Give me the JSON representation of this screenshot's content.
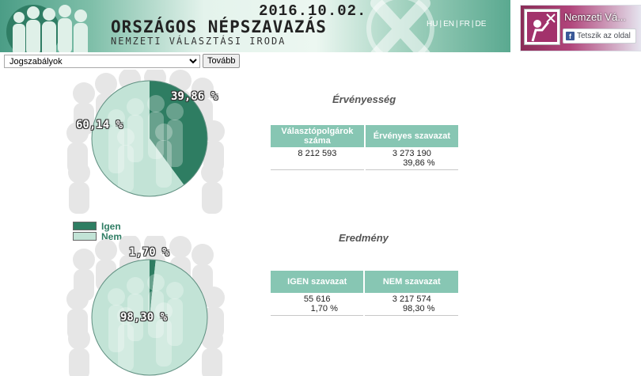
{
  "header": {
    "date": "2016.10.02.",
    "title": "ORSZÁGOS NÉPSZAVAZÁS",
    "subtitle": "NEMZETI VÁLASZTÁSI IRODA",
    "languages": [
      "HU",
      "EN",
      "FR",
      "DE"
    ],
    "lang_separator": "|"
  },
  "facebook_widget": {
    "page_name": "Nemzeti Vá...",
    "like_label": "Tetszik az oldal"
  },
  "nav": {
    "select_value": "Jogszabályok",
    "button_label": "Tovább"
  },
  "validity": {
    "title": "Érvényesség",
    "col1_header": "Választópolgárok száma",
    "col2_header": "Érvényes szavazat",
    "voters": "8 212 593",
    "valid_votes": "3 273 190",
    "valid_pct": "39,86 %",
    "pie_label_dark": "39,86 %",
    "pie_label_light": "60,14 %"
  },
  "legend": {
    "yes": "Igen",
    "no": "Nem"
  },
  "result": {
    "title": "Eredmény",
    "col1_header": "IGEN szavazat",
    "col2_header": "NEM szavazat",
    "yes_votes": "55 616",
    "yes_pct": "1,70 %",
    "no_votes": "3 217 574",
    "no_pct": "98,30 %",
    "pie_label_dark": "1,70 %",
    "pie_label_light": "98,30 %"
  },
  "chart_data": [
    {
      "type": "pie",
      "title": "Érvényesség",
      "labels": [
        "",
        ""
      ],
      "values": [
        39.86,
        60.14
      ],
      "colors": [
        "#2e7d62",
        "#c2e3d6"
      ]
    },
    {
      "type": "pie",
      "title": "Eredmény",
      "labels": [
        "Igen",
        "Nem"
      ],
      "values": [
        1.7,
        98.3
      ],
      "colors": [
        "#2e7d62",
        "#c2e3d6"
      ]
    }
  ],
  "colors": {
    "dark_green": "#2e7d62",
    "light_green": "#c2e3d6",
    "table_header": "#87c6b3"
  }
}
